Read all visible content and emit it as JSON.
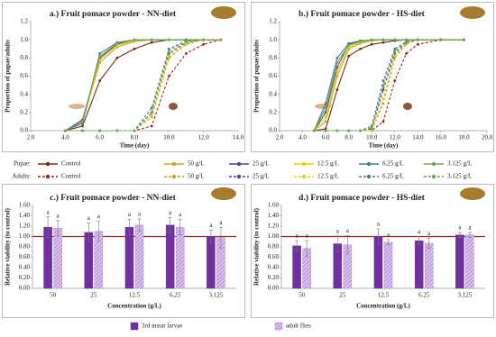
{
  "chart_data": [
    {
      "type": "line",
      "title": "a.) Fruit pomace powder - NN-diet",
      "x_label": "Time (day)",
      "y_label": "Proportion of pupae/adults",
      "xlim": [
        2,
        14
      ],
      "xticks": [
        {
          "value": 2,
          "label": "2.0"
        },
        {
          "value": 4,
          "label": "4.0"
        },
        {
          "value": 6,
          "label": "6.0"
        },
        {
          "value": 8,
          "label": "8.0"
        },
        {
          "value": 10,
          "label": "10.0"
        },
        {
          "value": 12,
          "label": "12.0"
        },
        {
          "value": 14,
          "label": "14.0"
        }
      ],
      "ylim": [
        0,
        1.2
      ],
      "yticks": [
        {
          "value": 0,
          "label": "0.0"
        },
        {
          "value": 0.2,
          "label": "0.2"
        },
        {
          "value": 0.4,
          "label": "0.4"
        },
        {
          "value": 0.6,
          "label": "0.6"
        },
        {
          "value": 0.8,
          "label": "0.8"
        },
        {
          "value": 1,
          "label": "1.0"
        },
        {
          "value": 1.2,
          "label": "1.2"
        }
      ],
      "legend_groups": [
        {
          "label": "Pupae:",
          "dashed": false
        },
        {
          "label": "Adults:",
          "dashed": true
        }
      ],
      "x": [
        4,
        5,
        6,
        7,
        8,
        9,
        10,
        11,
        12,
        13
      ],
      "series": [
        {
          "name": "Control",
          "color": "#7b2c0e",
          "dashed": false,
          "values": [
            0,
            0.05,
            0.55,
            0.8,
            0.9,
            0.97,
            1,
            1,
            1,
            1
          ]
        },
        {
          "name": "50 g/L",
          "color": "#c9a227",
          "dashed": false,
          "values": [
            0,
            0.1,
            0.75,
            0.92,
            0.98,
            1,
            1,
            1,
            1,
            1
          ]
        },
        {
          "name": "25 g/L",
          "color": "#5b3fa0",
          "dashed": false,
          "values": [
            0,
            0.12,
            0.8,
            0.95,
            1,
            1,
            1,
            1,
            1,
            1
          ]
        },
        {
          "name": "12.5 g/L",
          "color": "#e6d200",
          "dashed": false,
          "values": [
            0,
            0.1,
            0.78,
            0.94,
            0.99,
            1,
            1,
            1,
            1,
            1
          ]
        },
        {
          "name": "6.25 g/L",
          "color": "#3f7f8f",
          "dashed": false,
          "values": [
            0,
            0.08,
            0.85,
            0.97,
            1,
            1,
            1,
            1,
            1,
            1
          ]
        },
        {
          "name": "3.125 g/L",
          "color": "#6aa84f",
          "dashed": false,
          "values": [
            0,
            0.1,
            0.82,
            0.96,
            1,
            1,
            1,
            1,
            1,
            1
          ]
        },
        {
          "name": "Control",
          "color": "#a0231c",
          "dashed": true,
          "values": [
            0,
            0,
            0,
            0,
            0,
            0.05,
            0.6,
            0.85,
            0.95,
            1
          ]
        },
        {
          "name": "50 g/L",
          "color": "#c9a227",
          "dashed": true,
          "values": [
            0,
            0,
            0,
            0,
            0,
            0.15,
            0.8,
            0.95,
            1,
            1
          ]
        },
        {
          "name": "25 g/L",
          "color": "#5b3fa0",
          "dashed": true,
          "values": [
            0,
            0,
            0,
            0,
            0,
            0.2,
            0.85,
            0.97,
            1,
            1
          ]
        },
        {
          "name": "12.5 g/L",
          "color": "#e6d200",
          "dashed": true,
          "values": [
            0,
            0,
            0,
            0,
            0,
            0.18,
            0.82,
            0.96,
            1,
            1
          ]
        },
        {
          "name": "6.25 g/L",
          "color": "#3f7f8f",
          "dashed": true,
          "values": [
            0,
            0,
            0,
            0,
            0,
            0.25,
            0.9,
            0.99,
            1,
            1
          ]
        },
        {
          "name": "3.125 g/L",
          "color": "#6aa84f",
          "dashed": true,
          "values": [
            0,
            0,
            0,
            0,
            0,
            0.2,
            0.88,
            0.98,
            1,
            1
          ]
        }
      ]
    },
    {
      "type": "line",
      "title": "b.) Fruit pomace powder - HS-diet",
      "x_label": "Time (day)",
      "y_label": "Proportion of pupae/adults",
      "xlim": [
        2,
        20
      ],
      "xticks": [
        {
          "value": 2,
          "label": "2.0"
        },
        {
          "value": 4,
          "label": "4.0"
        },
        {
          "value": 6,
          "label": "6.0"
        },
        {
          "value": 8,
          "label": "8.0"
        },
        {
          "value": 10,
          "label": "10.0"
        },
        {
          "value": 12,
          "label": "12.0"
        },
        {
          "value": 14,
          "label": "14.0"
        },
        {
          "value": 16,
          "label": "16.0"
        },
        {
          "value": 18,
          "label": "18.0"
        },
        {
          "value": 20,
          "label": "20.0"
        }
      ],
      "ylim": [
        0,
        1.2
      ],
      "yticks": [
        {
          "value": 0,
          "label": "0.0"
        },
        {
          "value": 0.2,
          "label": "0.2"
        },
        {
          "value": 0.4,
          "label": "0.4"
        },
        {
          "value": 0.6,
          "label": "0.6"
        },
        {
          "value": 0.8,
          "label": "0.8"
        },
        {
          "value": 1,
          "label": "1.0"
        },
        {
          "value": 1.2,
          "label": "1.2"
        }
      ],
      "x": [
        5,
        6,
        7,
        8,
        9,
        10,
        11,
        12,
        13,
        14,
        16,
        18
      ],
      "series": [
        {
          "color": "#7b2c0e",
          "dashed": false,
          "values": [
            0,
            0.02,
            0.45,
            0.82,
            0.9,
            0.95,
            0.97,
            0.99,
            1,
            1,
            1,
            1
          ]
        },
        {
          "color": "#c9a227",
          "dashed": false,
          "values": [
            0,
            0.1,
            0.6,
            0.9,
            0.96,
            0.99,
            1,
            1,
            1,
            1,
            1,
            1
          ]
        },
        {
          "color": "#5b3fa0",
          "dashed": false,
          "values": [
            0,
            0.2,
            0.7,
            0.95,
            0.98,
            1,
            1,
            1,
            1,
            1,
            1,
            1
          ]
        },
        {
          "color": "#e6d200",
          "dashed": false,
          "values": [
            0,
            0.15,
            0.65,
            0.92,
            0.97,
            1,
            1,
            1,
            1,
            1,
            1,
            1
          ]
        },
        {
          "color": "#3f7f8f",
          "dashed": false,
          "values": [
            0,
            0.3,
            0.8,
            0.96,
            0.99,
            1,
            1,
            1,
            1,
            1,
            1,
            1
          ]
        },
        {
          "color": "#6aa84f",
          "dashed": false,
          "values": [
            0,
            0.25,
            0.75,
            0.94,
            0.98,
            1,
            1,
            1,
            1,
            1,
            1,
            1
          ]
        },
        {
          "color": "#a0231c",
          "dashed": true,
          "values": [
            0,
            0,
            0,
            0,
            0,
            0,
            0.1,
            0.55,
            0.85,
            0.95,
            1,
            1
          ]
        },
        {
          "color": "#c9a227",
          "dashed": true,
          "values": [
            0,
            0,
            0,
            0,
            0,
            0,
            0.3,
            0.8,
            0.95,
            1,
            1,
            1
          ]
        },
        {
          "color": "#5b3fa0",
          "dashed": true,
          "values": [
            0,
            0,
            0,
            0,
            0,
            0.02,
            0.45,
            0.85,
            0.97,
            1,
            1,
            1
          ]
        },
        {
          "color": "#e6d200",
          "dashed": true,
          "values": [
            0,
            0,
            0,
            0,
            0,
            0,
            0.35,
            0.82,
            0.96,
            1,
            1,
            1
          ]
        },
        {
          "color": "#3f7f8f",
          "dashed": true,
          "values": [
            0,
            0,
            0,
            0,
            0,
            0.05,
            0.55,
            0.9,
            0.98,
            1,
            1,
            1
          ]
        },
        {
          "color": "#6aa84f",
          "dashed": true,
          "values": [
            0,
            0,
            0,
            0,
            0,
            0.03,
            0.5,
            0.88,
            0.97,
            1,
            1,
            1
          ]
        }
      ]
    },
    {
      "type": "bar",
      "title": "c.) Fruit pomace powder - NN-diet",
      "x_label": "Concentration (g/L)",
      "y_label": "Relative viability (to control)",
      "categories": [
        "50",
        "25",
        "12.5",
        "6.25",
        "3.125"
      ],
      "reference_line": 1,
      "ylim": [
        0,
        1.6
      ],
      "yticks": [
        {
          "value": 0,
          "label": "0.00"
        },
        {
          "value": 0.2,
          "label": "0.20"
        },
        {
          "value": 0.4,
          "label": "0.40"
        },
        {
          "value": 0.6,
          "label": "0.60"
        },
        {
          "value": 0.8,
          "label": "0.80"
        },
        {
          "value": 1,
          "label": "1.00"
        },
        {
          "value": 1.2,
          "label": "1.20"
        },
        {
          "value": 1.4,
          "label": "1.40"
        },
        {
          "value": 1.6,
          "label": "1.60"
        }
      ],
      "series": [
        {
          "name": "3rd instar larvae",
          "color": "#7030a0",
          "hatched": false,
          "values": [
            1.18,
            1.08,
            1.18,
            1.22,
            1.0
          ],
          "errors": [
            0.2,
            0.18,
            0.15,
            0.15,
            0.12
          ],
          "letters": [
            "a",
            "a",
            "a",
            "a",
            "a"
          ]
        },
        {
          "name": "adult flies",
          "color": "#b58fd6",
          "hatched": true,
          "values": [
            1.16,
            1.1,
            1.22,
            1.18,
            0.98
          ],
          "errors": [
            0.15,
            0.2,
            0.12,
            0.15,
            0.2
          ],
          "letters": [
            "a",
            "a",
            "a",
            "a",
            "a"
          ]
        }
      ]
    },
    {
      "type": "bar",
      "title": "d.) Fruit pomace powder - HS-diet",
      "x_label": "Concentration (g/L)",
      "y_label": "Relative viability (to control)",
      "categories": [
        "50",
        "25",
        "12.5",
        "6.25",
        "3.125"
      ],
      "reference_line": 1,
      "ylim": [
        0,
        1.6
      ],
      "yticks": [
        {
          "value": 0,
          "label": "0.00"
        },
        {
          "value": 0.2,
          "label": "0.20"
        },
        {
          "value": 0.4,
          "label": "0.40"
        },
        {
          "value": 0.6,
          "label": "0.60"
        },
        {
          "value": 0.8,
          "label": "0.80"
        },
        {
          "value": 1,
          "label": "1.00"
        },
        {
          "value": 1.2,
          "label": "1.20"
        },
        {
          "value": 1.4,
          "label": "1.40"
        },
        {
          "value": 1.6,
          "label": "1.60"
        }
      ],
      "series": [
        {
          "color": "#7030a0",
          "hatched": false,
          "values": [
            0.82,
            0.86,
            1.0,
            0.92,
            1.03
          ],
          "errors": [
            0.1,
            0.15,
            0.15,
            0.08,
            0.05
          ],
          "letters": [
            "a",
            "a",
            "a",
            "a",
            "a"
          ]
        },
        {
          "color": "#b58fd6",
          "hatched": true,
          "values": [
            0.77,
            0.84,
            0.89,
            0.87,
            1.03
          ],
          "errors": [
            0.15,
            0.18,
            0.05,
            0.1,
            0.05
          ],
          "letters": [
            "a",
            "a",
            "a",
            "a",
            "a"
          ]
        }
      ]
    }
  ]
}
